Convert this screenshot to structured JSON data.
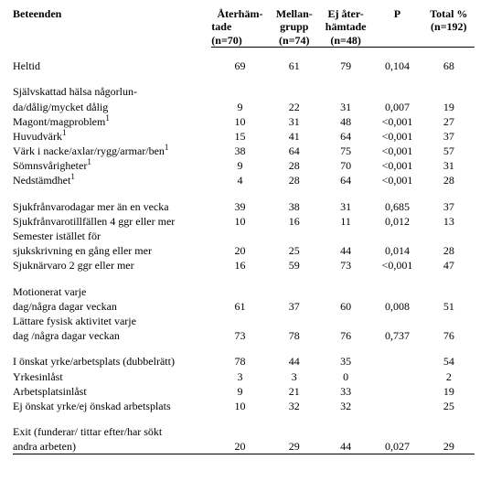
{
  "columns": {
    "c0": "Beteenden",
    "c1_l1": "Återhäm-",
    "c1_l2": "tade",
    "c1_l3": "(n=70)",
    "c2_l1": "Mellan-",
    "c2_l2": "grupp",
    "c2_l3": "(n=74)",
    "c3_l1": "Ej åter-",
    "c3_l2": "hämtade",
    "c3_l3": "(n=48)",
    "c4_l1": "P",
    "c5_l1": "Total %",
    "c5_l2": "(n=192)"
  },
  "r_heltid": {
    "label": "Heltid",
    "v1": "69",
    "v2": "61",
    "v3": "79",
    "p": "0,104",
    "t": "68"
  },
  "g_health_title1": "Självskattad hälsa någorlun-",
  "g_health_title2": "da/dålig/mycket dålig",
  "r_health": {
    "v1": "9",
    "v2": "22",
    "v3": "31",
    "p": "0,007",
    "t": "19"
  },
  "r_mag": {
    "label": "Magont/magproblem",
    "sup": "1",
    "v1": "10",
    "v2": "31",
    "v3": "48",
    "p": "<0,001",
    "t": "27"
  },
  "r_huv": {
    "label": "Huvudvärk",
    "sup": "1",
    "v1": "15",
    "v2": "41",
    "v3": "64",
    "p": "<0,001",
    "t": "37"
  },
  "r_vark": {
    "label": "Värk i nacke/axlar/rygg/armar/ben",
    "sup": "1",
    "v1": "38",
    "v2": "64",
    "v3": "75",
    "p": "<0,001",
    "t": "57"
  },
  "r_somn": {
    "label": "Sömnsvårigheter",
    "sup": "1",
    "v1": "9",
    "v2": "28",
    "v3": "70",
    "p": "<0,001",
    "t": "31"
  },
  "r_neds": {
    "label": "Nedstämdhet",
    "sup": "1",
    "v1": "4",
    "v2": "28",
    "v3": "64",
    "p": "<0,001",
    "t": "28"
  },
  "r_sfd": {
    "label": "Sjukfrånvarodagar mer än en vecka",
    "v1": "39",
    "v2": "38",
    "v3": "31",
    "p": "0,685",
    "t": "37"
  },
  "r_sft": {
    "label": "Sjukfrånvarotillfällen 4 ggr eller mer",
    "v1": "10",
    "v2": "16",
    "v3": "11",
    "p": "0,012",
    "t": "13"
  },
  "g_sem1": "Semester istället för",
  "r_sem": {
    "label": "sjukskrivning en gång eller mer",
    "v1": "20",
    "v2": "25",
    "v3": "44",
    "p": "0,014",
    "t": "28"
  },
  "r_sjn": {
    "label": "Sjuknärvaro 2 ggr eller mer",
    "v1": "16",
    "v2": "59",
    "v3": "73",
    "p": "<0,001",
    "t": "47"
  },
  "g_mot1": "Motionerat varje",
  "r_mot": {
    "label": "dag/några dagar veckan",
    "v1": "61",
    "v2": "37",
    "v3": "60",
    "p": "0,008",
    "t": "51"
  },
  "g_lfa1": "Lättare fysisk aktivitet varje",
  "r_lfa": {
    "label": "dag /några dagar veckan",
    "v1": "73",
    "v2": "78",
    "v3": "76",
    "p": "0,737",
    "t": "76"
  },
  "r_yrk": {
    "label": "I önskat yrke/arbetsplats (dubbelrätt)",
    "v1": "78",
    "v2": "44",
    "v3": "35",
    "p": "",
    "t": "54"
  },
  "r_yin": {
    "label": "Yrkesinlåst",
    "v1": "3",
    "v2": "3",
    "v3": "0",
    "p": "",
    "t": "2"
  },
  "r_ain": {
    "label": "Arbetsplatsinlåst",
    "v1": "9",
    "v2": "21",
    "v3": "33",
    "p": "",
    "t": "19"
  },
  "r_eon": {
    "label": "Ej önskat yrke/ej önskad arbetsplats",
    "v1": "10",
    "v2": "32",
    "v3": "32",
    "p": "",
    "t": "25"
  },
  "g_exit1": "Exit (funderar/ tittar efter/har sökt",
  "r_exit": {
    "label": "andra arbeten)",
    "v1": "20",
    "v2": "29",
    "v3": "44",
    "p": "0,027",
    "t": "29"
  }
}
